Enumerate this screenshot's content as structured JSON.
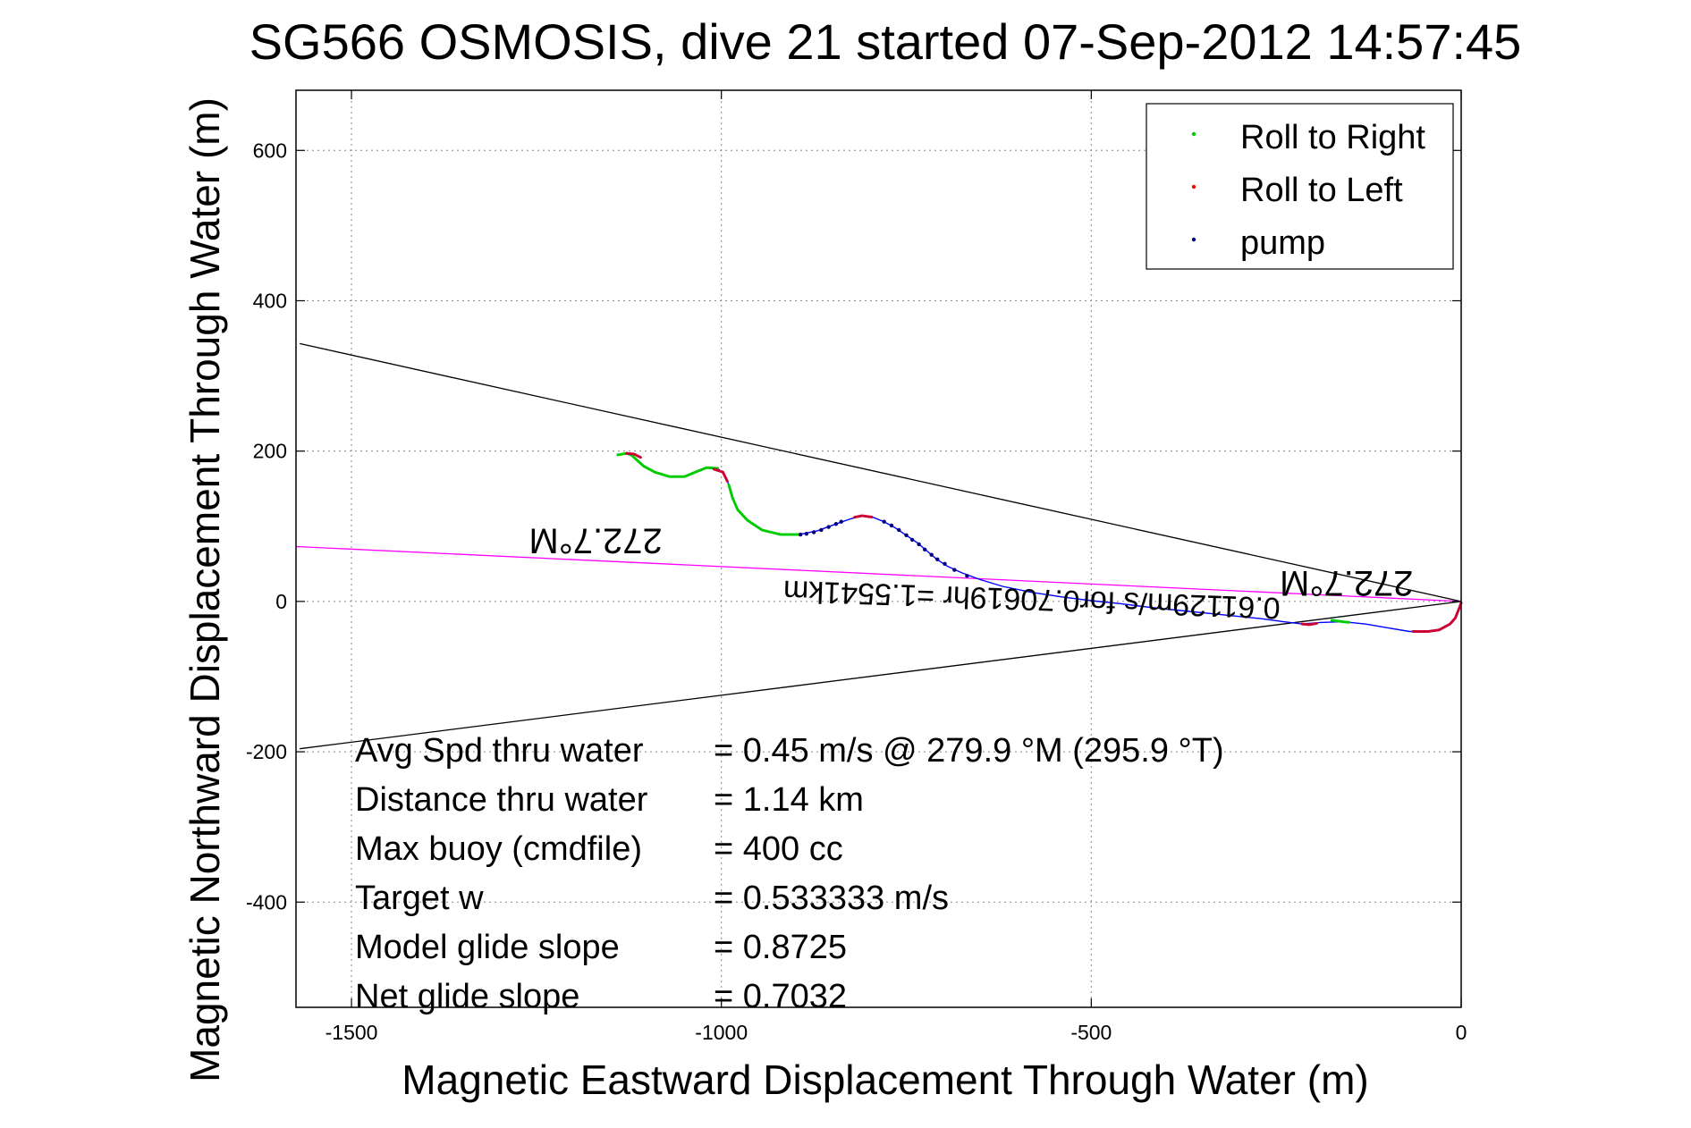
{
  "chart_data": {
    "type": "scatter",
    "title": "SG566 OSMOSIS, dive 21 started 07-Sep-2012 14:57:45",
    "xlabel": "Magnetic Eastward Displacement Through Water (m)",
    "ylabel": "Magnetic Northward Displacement Through Water (m)",
    "xlim": [
      -1575,
      0
    ],
    "ylim": [
      -540,
      680
    ],
    "xticks": [
      -1500,
      -1000,
      -500,
      0
    ],
    "yticks": [
      -400,
      -200,
      0,
      200,
      400,
      600
    ],
    "grid": true,
    "legend_position": "top-right",
    "legend": [
      {
        "label": "Roll to Right",
        "color": "#00cc00"
      },
      {
        "label": "Roll to Left",
        "color": "#ff0000"
      },
      {
        "label": "pump",
        "color": "#00007f"
      }
    ],
    "track": {
      "color": "#0000ff",
      "points": [
        [
          0,
          0
        ],
        [
          -3,
          -10
        ],
        [
          -8,
          -22
        ],
        [
          -15,
          -30
        ],
        [
          -30,
          -38
        ],
        [
          -45,
          -40
        ],
        [
          -70,
          -40
        ],
        [
          -100,
          -35
        ],
        [
          -130,
          -30
        ],
        [
          -160,
          -27
        ],
        [
          -190,
          -28
        ],
        [
          -215,
          -30
        ],
        [
          -240,
          -27
        ],
        [
          -270,
          -23
        ],
        [
          -300,
          -20
        ],
        [
          -340,
          -16
        ],
        [
          -380,
          -12
        ],
        [
          -420,
          -8
        ],
        [
          -460,
          -3
        ],
        [
          -500,
          1
        ],
        [
          -540,
          6
        ],
        [
          -580,
          12
        ],
        [
          -620,
          20
        ],
        [
          -650,
          29
        ],
        [
          -675,
          38
        ],
        [
          -695,
          47
        ],
        [
          -710,
          57
        ],
        [
          -722,
          67
        ],
        [
          -735,
          78
        ],
        [
          -750,
          88
        ],
        [
          -765,
          98
        ],
        [
          -780,
          106
        ],
        [
          -795,
          112
        ],
        [
          -810,
          114
        ],
        [
          -825,
          110
        ],
        [
          -845,
          103
        ],
        [
          -870,
          94
        ],
        [
          -895,
          89
        ],
        [
          -920,
          89
        ],
        [
          -945,
          95
        ],
        [
          -965,
          108
        ],
        [
          -978,
          122
        ],
        [
          -985,
          138
        ],
        [
          -990,
          155
        ],
        [
          -995,
          168
        ],
        [
          -1005,
          177
        ],
        [
          -1020,
          178
        ],
        [
          -1035,
          172
        ],
        [
          -1050,
          166
        ],
        [
          -1070,
          166
        ],
        [
          -1090,
          172
        ],
        [
          -1105,
          180
        ],
        [
          -1115,
          188
        ],
        [
          -1122,
          195
        ],
        [
          -1128,
          197
        ],
        [
          -1135,
          196
        ],
        [
          -1140,
          195
        ]
      ]
    },
    "heading_segments": [
      {
        "label": "Roll to Right",
        "color": "#00cc00",
        "points": [
          [
            -1140,
            195
          ],
          [
            -1128,
            197
          ],
          [
            -1122,
            195
          ],
          [
            -1105,
            180
          ],
          [
            -1090,
            172
          ],
          [
            -1070,
            166
          ],
          [
            -1050,
            166
          ],
          [
            -1035,
            172
          ],
          [
            -1020,
            178
          ],
          [
            -1005,
            177
          ]
        ]
      },
      {
        "label": "Roll to Left",
        "color": "#cc0033",
        "points": [
          [
            -1128,
            197
          ],
          [
            -1118,
            196
          ],
          [
            -1108,
            191
          ]
        ]
      },
      {
        "label": "Roll to Left",
        "color": "#cc0033",
        "points": [
          [
            -1010,
            176
          ],
          [
            -998,
            172
          ],
          [
            -992,
            160
          ]
        ]
      },
      {
        "label": "Roll to Right",
        "color": "#00cc00",
        "points": [
          [
            -990,
            155
          ],
          [
            -985,
            138
          ],
          [
            -978,
            122
          ],
          [
            -965,
            108
          ],
          [
            -945,
            95
          ],
          [
            -920,
            89
          ],
          [
            -895,
            89
          ]
        ]
      },
      {
        "label": "Roll to Left",
        "color": "#cc0033",
        "points": [
          [
            -820,
            112
          ],
          [
            -810,
            114
          ],
          [
            -795,
            112
          ]
        ]
      },
      {
        "label": "Roll to Right",
        "color": "#00cc00",
        "points": [
          [
            -175,
            -25
          ],
          [
            -160,
            -27
          ],
          [
            -150,
            -28
          ]
        ]
      },
      {
        "label": "Roll to Left",
        "color": "#cc0033",
        "points": [
          [
            -215,
            -30
          ],
          [
            -205,
            -31
          ],
          [
            -195,
            -29
          ]
        ]
      },
      {
        "label": "Roll to Left",
        "color": "#cc0033",
        "points": [
          [
            -65,
            -40
          ],
          [
            -45,
            -40
          ],
          [
            -30,
            -38
          ],
          [
            -15,
            -30
          ],
          [
            -8,
            -22
          ],
          [
            -3,
            -10
          ],
          [
            0,
            -2
          ]
        ]
      }
    ],
    "pump_points": [
      [
        -893,
        89
      ],
      [
        -885,
        90
      ],
      [
        -875,
        92
      ],
      [
        -865,
        95
      ],
      [
        -855,
        99
      ],
      [
        -845,
        103
      ],
      [
        -838,
        106
      ],
      [
        -780,
        106
      ],
      [
        -770,
        101
      ],
      [
        -760,
        95
      ],
      [
        -750,
        88
      ],
      [
        -742,
        82
      ],
      [
        -733,
        76
      ],
      [
        -725,
        69
      ],
      [
        -716,
        62
      ],
      [
        -708,
        56
      ],
      [
        -698,
        50
      ],
      [
        -685,
        42
      ],
      [
        -668,
        34
      ]
    ],
    "reference_lines": [
      {
        "name": "upper",
        "color": "#000000",
        "points": [
          [
            -1570,
            343
          ],
          [
            0,
            0
          ]
        ]
      },
      {
        "name": "lower",
        "color": "#000000",
        "points": [
          [
            -1570,
            -196
          ],
          [
            0,
            0
          ]
        ]
      },
      {
        "name": "heading",
        "color": "#ff00ff",
        "points": [
          [
            -1575,
            73
          ],
          [
            0,
            0
          ]
        ]
      }
    ],
    "annotations_rotated": [
      {
        "text": "272.7°M",
        "at": [
          -1170,
          97
        ]
      },
      {
        "text": "272.7°M",
        "at": [
          -155,
          40
        ]
      },
      {
        "text": "0.61129m/s for0.70619hr =1.5541km",
        "at": [
          -580,
          16
        ]
      }
    ]
  },
  "stats": [
    {
      "label": "Avg Spd thru water",
      "value": "=  0.45 m/s @ 279.9 °M (295.9 °T)"
    },
    {
      "label": "Distance thru water",
      "value": "=  1.14 km"
    },
    {
      "label": "Max buoy (cmdfile)",
      "value": "= 400 cc"
    },
    {
      "label": "Target w",
      "value": "= 0.533333 m/s"
    },
    {
      "label": "Model glide slope",
      "value": "= 0.8725"
    },
    {
      "label": "Net glide slope",
      "value": "= 0.7032"
    }
  ]
}
